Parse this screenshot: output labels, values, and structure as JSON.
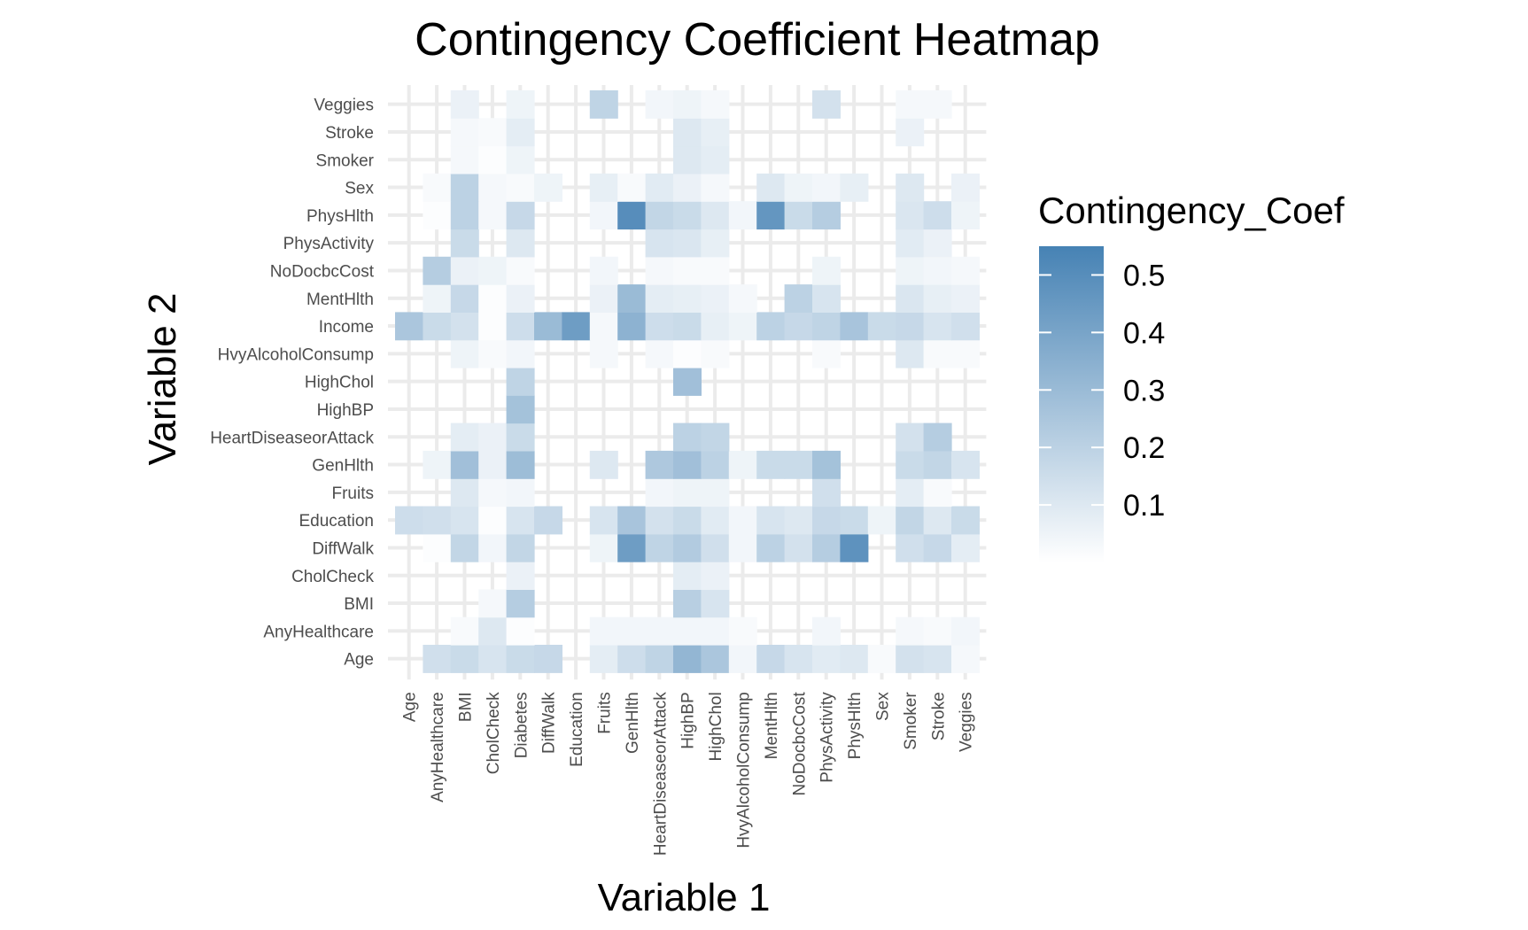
{
  "chart_data": {
    "type": "heatmap",
    "title": "Contingency Coefficient Heatmap",
    "xlabel": "Variable 1",
    "ylabel": "Variable 2",
    "x_categories": [
      "Age",
      "AnyHealthcare",
      "BMI",
      "CholCheck",
      "Diabetes",
      "DiffWalk",
      "Education",
      "Fruits",
      "GenHlth",
      "HeartDiseaseorAttack",
      "HighBP",
      "HighChol",
      "HvyAlcoholConsump",
      "MentHlth",
      "NoDocbcCost",
      "PhysActivity",
      "PhysHlth",
      "Sex",
      "Smoker",
      "Stroke",
      "Veggies"
    ],
    "y_categories": [
      "Age",
      "AnyHealthcare",
      "BMI",
      "CholCheck",
      "DiffWalk",
      "Education",
      "Fruits",
      "GenHlth",
      "HeartDiseaseorAttack",
      "HighBP",
      "HighChol",
      "HvyAlcoholConsump",
      "Income",
      "MentHlth",
      "NoDocbcCost",
      "PhysActivity",
      "PhysHlth",
      "Sex",
      "Smoker",
      "Stroke",
      "Veggies"
    ],
    "legend": {
      "title": "Contingency_Coef",
      "position": "right",
      "range": [
        0,
        0.55
      ],
      "ticks": [
        0.1,
        0.2,
        0.3,
        0.4,
        0.5
      ],
      "tick_labels": [
        "0.1",
        "0.2",
        "0.3",
        "0.4",
        "0.5"
      ],
      "low_color": "#ffffff",
      "high_color": "#4682b4"
    },
    "grid": true,
    "values": [
      [
        null,
        0.14,
        0.16,
        0.12,
        0.16,
        0.17,
        null,
        0.08,
        0.15,
        0.19,
        0.32,
        0.25,
        0.04,
        0.17,
        0.12,
        0.09,
        0.1,
        0.02,
        0.13,
        0.12,
        0.03
      ],
      [
        null,
        null,
        0.02,
        0.1,
        0.01,
        null,
        null,
        0.04,
        0.04,
        0.04,
        0.04,
        0.04,
        0.02,
        null,
        null,
        0.04,
        null,
        null,
        0.03,
        0.02,
        0.04
      ],
      [
        null,
        null,
        null,
        0.03,
        0.22,
        null,
        null,
        null,
        null,
        null,
        0.21,
        0.12,
        null,
        null,
        null,
        null,
        null,
        null,
        null,
        null,
        null
      ],
      [
        null,
        null,
        null,
        null,
        0.06,
        null,
        null,
        null,
        null,
        null,
        0.08,
        0.06,
        null,
        null,
        null,
        null,
        null,
        null,
        null,
        null,
        null
      ],
      [
        null,
        0.01,
        0.18,
        0.04,
        0.18,
        null,
        null,
        0.05,
        0.43,
        0.19,
        0.23,
        0.14,
        0.04,
        0.2,
        0.13,
        0.22,
        0.48,
        null,
        0.14,
        0.17,
        0.08
      ],
      [
        0.15,
        0.14,
        0.12,
        0.01,
        0.12,
        0.17,
        null,
        0.12,
        0.26,
        0.13,
        0.16,
        0.09,
        0.04,
        0.12,
        0.1,
        0.17,
        0.16,
        0.05,
        0.18,
        0.1,
        0.16
      ],
      [
        null,
        null,
        0.1,
        0.03,
        0.04,
        null,
        null,
        null,
        null,
        0.04,
        0.05,
        0.05,
        null,
        null,
        null,
        0.14,
        null,
        null,
        0.08,
        0.02,
        null
      ],
      [
        null,
        0.05,
        0.28,
        0.06,
        0.29,
        null,
        null,
        0.1,
        null,
        0.24,
        0.28,
        0.2,
        0.05,
        0.16,
        0.16,
        0.27,
        null,
        null,
        0.16,
        0.18,
        0.12
      ],
      [
        null,
        null,
        0.08,
        0.06,
        0.16,
        null,
        null,
        null,
        null,
        null,
        0.2,
        0.18,
        null,
        null,
        null,
        null,
        null,
        null,
        0.13,
        0.22,
        null
      ],
      [
        null,
        null,
        null,
        null,
        0.27,
        null,
        null,
        null,
        null,
        null,
        null,
        null,
        null,
        null,
        null,
        null,
        null,
        null,
        null,
        null,
        null
      ],
      [
        null,
        null,
        null,
        null,
        0.19,
        null,
        null,
        null,
        null,
        null,
        0.28,
        null,
        null,
        null,
        null,
        null,
        null,
        null,
        null,
        null,
        null
      ],
      [
        null,
        null,
        0.05,
        0.02,
        0.04,
        null,
        null,
        0.03,
        null,
        0.03,
        0.01,
        0.02,
        null,
        null,
        null,
        0.02,
        null,
        null,
        0.1,
        0.02,
        0.02
      ],
      [
        0.25,
        0.16,
        0.13,
        0.01,
        0.15,
        0.3,
        0.43,
        0.03,
        0.34,
        0.15,
        0.16,
        0.07,
        0.05,
        0.2,
        0.17,
        0.19,
        0.26,
        0.16,
        0.17,
        0.12,
        0.14
      ],
      [
        null,
        0.05,
        0.17,
        0.01,
        0.06,
        null,
        null,
        0.06,
        0.3,
        0.08,
        0.07,
        0.06,
        0.03,
        null,
        0.2,
        0.12,
        null,
        null,
        0.11,
        0.07,
        0.06
      ],
      [
        null,
        0.22,
        0.06,
        0.05,
        0.02,
        null,
        null,
        0.04,
        null,
        0.03,
        0.02,
        0.02,
        null,
        null,
        null,
        0.05,
        null,
        null,
        0.05,
        0.04,
        0.03
      ],
      [
        null,
        null,
        0.16,
        null,
        0.1,
        null,
        null,
        null,
        null,
        0.12,
        0.11,
        0.07,
        null,
        null,
        null,
        null,
        null,
        null,
        0.09,
        0.06,
        null
      ],
      [
        null,
        0.01,
        0.2,
        0.03,
        0.17,
        null,
        null,
        0.04,
        0.5,
        0.18,
        0.16,
        0.1,
        0.04,
        0.46,
        0.16,
        0.22,
        null,
        null,
        0.11,
        0.15,
        0.05
      ],
      [
        null,
        0.02,
        0.2,
        0.03,
        0.02,
        0.05,
        null,
        0.07,
        0.02,
        0.09,
        0.06,
        0.03,
        null,
        0.1,
        0.05,
        0.04,
        0.07,
        null,
        0.1,
        null,
        0.06
      ],
      [
        null,
        null,
        0.03,
        0.01,
        0.05,
        null,
        null,
        null,
        null,
        null,
        0.1,
        0.08,
        null,
        null,
        null,
        null,
        null,
        null,
        null,
        null,
        null
      ],
      [
        null,
        null,
        0.03,
        0.02,
        0.08,
        null,
        null,
        null,
        null,
        null,
        0.1,
        0.07,
        null,
        null,
        null,
        null,
        null,
        null,
        0.06,
        null,
        null
      ],
      [
        null,
        null,
        0.06,
        null,
        0.05,
        null,
        null,
        0.19,
        null,
        0.04,
        0.05,
        0.03,
        null,
        null,
        null,
        0.13,
        null,
        null,
        0.03,
        0.03,
        null
      ]
    ]
  }
}
